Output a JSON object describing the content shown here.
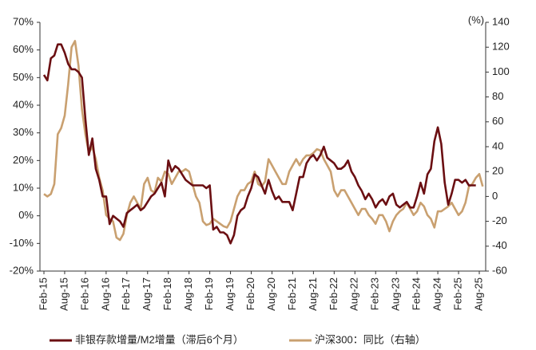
{
  "chart_data": {
    "type": "line",
    "y2label": "(%)",
    "categories": [
      "Feb-15",
      null,
      null,
      null,
      null,
      null,
      "Aug-15",
      null,
      null,
      null,
      null,
      null,
      "Feb-16",
      null,
      null,
      null,
      null,
      null,
      "Aug-16",
      null,
      null,
      null,
      null,
      null,
      "Feb-17",
      null,
      null,
      null,
      null,
      null,
      "Aug-17",
      null,
      null,
      null,
      null,
      null,
      "Feb-18",
      null,
      null,
      null,
      null,
      null,
      "Aug-18",
      null,
      null,
      null,
      null,
      null,
      "Feb-19",
      null,
      null,
      null,
      null,
      null,
      "Aug-19",
      null,
      null,
      null,
      null,
      null,
      "Feb-20",
      null,
      null,
      null,
      null,
      null,
      "Aug-20",
      null,
      null,
      null,
      null,
      null,
      "Feb-21",
      null,
      null,
      null,
      null,
      null,
      "Aug-21",
      null,
      null,
      null,
      null,
      null,
      "Feb-22",
      null,
      null,
      null,
      null,
      null,
      "Aug-22",
      null,
      null,
      null,
      null,
      null,
      "Feb-23",
      null,
      null,
      null,
      null,
      null,
      "Aug-23",
      null,
      null,
      null,
      null,
      null,
      "Feb-24",
      null,
      null,
      null,
      null,
      null,
      "Aug-24",
      null,
      null,
      null,
      null,
      null,
      "Feb-25",
      null,
      null,
      null,
      null,
      null,
      "Aug-25",
      null
    ],
    "series": [
      {
        "name": "非银存款增量/M2增量（滞后6个月）",
        "color": "#6b0f12",
        "axis": "y",
        "values": [
          51,
          49,
          57,
          58,
          62,
          62,
          59,
          55,
          53,
          53,
          52,
          50,
          35,
          22,
          28,
          17,
          13,
          7,
          7,
          -3,
          0,
          -1,
          -2,
          -4,
          1,
          2,
          3,
          4,
          2,
          3,
          5,
          7,
          8,
          10,
          12,
          7,
          20,
          16,
          18,
          17,
          15,
          13,
          12,
          11,
          11,
          11,
          11,
          10,
          11,
          -5,
          -4,
          -6,
          -6,
          -7,
          -10,
          -7,
          0,
          2,
          3,
          7,
          10,
          15,
          14,
          11,
          8,
          13,
          9,
          6,
          7,
          5,
          5,
          5,
          2,
          8,
          14,
          14,
          19,
          21,
          22,
          20,
          22,
          25,
          21,
          20,
          19,
          17,
          17,
          18,
          20,
          16,
          14,
          11,
          9,
          6,
          8,
          6,
          3,
          5,
          6,
          4,
          7,
          8,
          4,
          3,
          4,
          5,
          3,
          3,
          7,
          12,
          8,
          15,
          17,
          27,
          32,
          26,
          12,
          4,
          8,
          13,
          13,
          12,
          13,
          11,
          11,
          11,
          null,
          null
        ]
      },
      {
        "name": "沪深300：同比（右轴）",
        "color": "#c9a070",
        "axis": "y2",
        "values": [
          2,
          0,
          2,
          10,
          50,
          55,
          65,
          90,
          120,
          125,
          105,
          70,
          50,
          35,
          40,
          30,
          15,
          5,
          -15,
          -18,
          -20,
          -33,
          -35,
          -30,
          -15,
          -5,
          0,
          -5,
          -10,
          10,
          15,
          5,
          3,
          15,
          12,
          20,
          18,
          10,
          15,
          20,
          20,
          22,
          20,
          10,
          0,
          -5,
          -20,
          -23,
          -22,
          -18,
          -20,
          -22,
          -24,
          -25,
          -20,
          -10,
          0,
          5,
          5,
          10,
          12,
          20,
          10,
          8,
          12,
          30,
          25,
          20,
          15,
          10,
          10,
          20,
          25,
          30,
          25,
          30,
          33,
          33,
          35,
          38,
          37,
          30,
          25,
          20,
          5,
          0,
          5,
          5,
          0,
          -5,
          -10,
          -15,
          -10,
          -10,
          -15,
          -18,
          -22,
          -15,
          -15,
          -20,
          -28,
          -20,
          -15,
          -12,
          -10,
          -5,
          -10,
          -15,
          -12,
          -5,
          -8,
          -15,
          -18,
          -25,
          -12,
          -12,
          -10,
          -8,
          -5,
          -10,
          -15,
          -12,
          -5,
          8,
          10,
          15,
          18,
          8
        ]
      }
    ],
    "ylim": [
      -20,
      70
    ],
    "yticks": [
      {
        "value": -20,
        "label": "-20%"
      },
      {
        "value": -10,
        "label": "-10%"
      },
      {
        "value": 0,
        "label": "0%"
      },
      {
        "value": 10,
        "label": "10%"
      },
      {
        "value": 20,
        "label": "20%"
      },
      {
        "value": 30,
        "label": "30%"
      },
      {
        "value": 40,
        "label": "40%"
      },
      {
        "value": 50,
        "label": "50%"
      },
      {
        "value": 60,
        "label": "60%"
      },
      {
        "value": 70,
        "label": "70%"
      }
    ],
    "y2lim": [
      -60,
      140
    ],
    "y2ticks": [
      -60,
      -40,
      -20,
      0,
      20,
      40,
      60,
      80,
      100,
      120,
      140
    ]
  }
}
